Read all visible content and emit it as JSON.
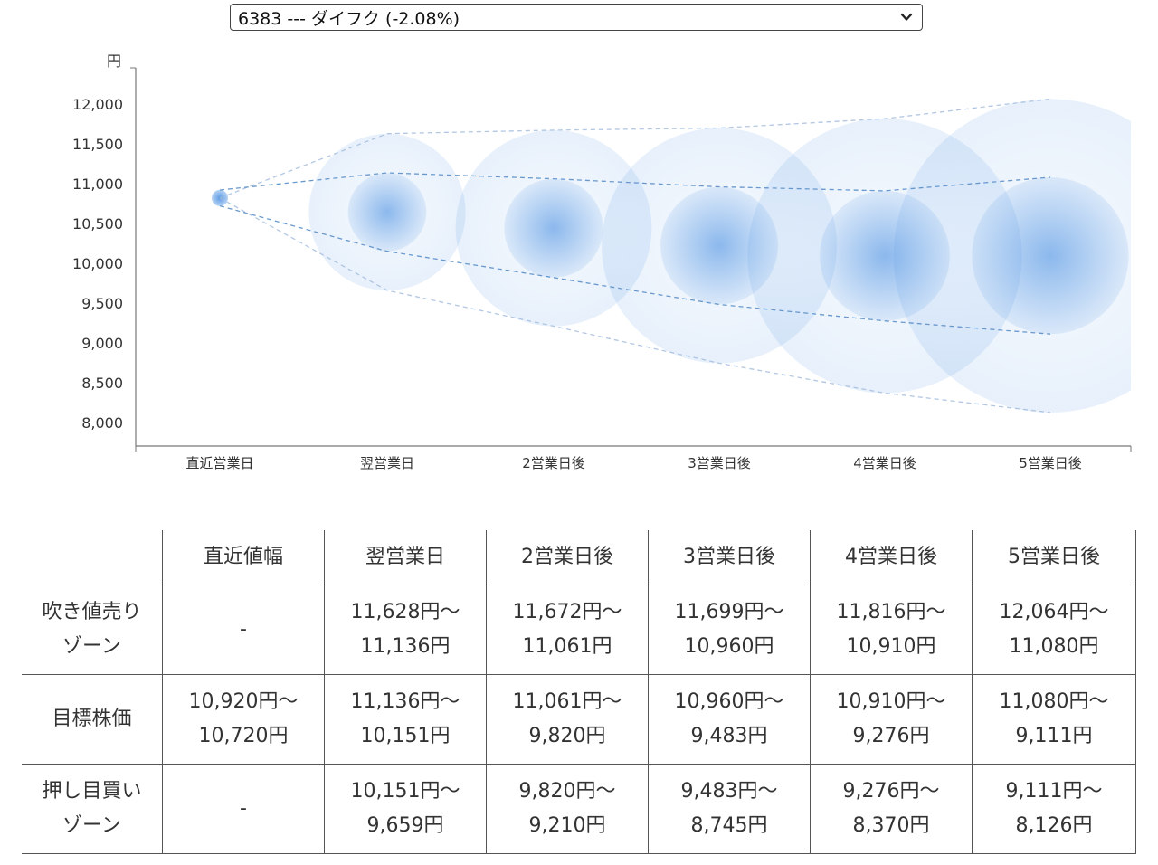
{
  "selector": {
    "value": "6383 --- ダイフク (-2.08%)"
  },
  "chart_data": {
    "type": "scatter",
    "y_unit": "円",
    "categories": [
      "直近営業日",
      "翌営業日",
      "2営業日後",
      "3営業日後",
      "4営業日後",
      "5営業日後"
    ],
    "y_ticks": [
      8000,
      8500,
      9000,
      9500,
      10000,
      10500,
      11000,
      11500,
      12000
    ],
    "y_tick_labels": [
      "8,000",
      "8,500",
      "9,000",
      "9,500",
      "10,000",
      "10,500",
      "11,000",
      "11,500",
      "12,000"
    ],
    "ylim": [
      7700,
      12500
    ],
    "points": [
      {
        "category": "直近営業日",
        "center": 10820,
        "inner_high": 10920,
        "inner_low": 10720,
        "outer_high": 10820,
        "outer_low": 10820
      },
      {
        "category": "翌営業日",
        "center": 10643,
        "inner_high": 11136,
        "inner_low": 10151,
        "outer_high": 11628,
        "outer_low": 9659
      },
      {
        "category": "2営業日後",
        "center": 10441,
        "inner_high": 11061,
        "inner_low": 9820,
        "outer_high": 11672,
        "outer_low": 9210
      },
      {
        "category": "3営業日後",
        "center": 10222,
        "inner_high": 10960,
        "inner_low": 9483,
        "outer_high": 11699,
        "outer_low": 8745
      },
      {
        "category": "4営業日後",
        "center": 10093,
        "inner_high": 10910,
        "inner_low": 9276,
        "outer_high": 11816,
        "outer_low": 8370
      },
      {
        "category": "5営業日後",
        "center": 10095,
        "inner_high": 11080,
        "inner_low": 9111,
        "outer_high": 12064,
        "outer_low": 8126
      }
    ],
    "colors": {
      "bubble": "#4a90e2",
      "guide": "#5a8fc8",
      "axis": "#666666"
    },
    "grid": false,
    "legend": "none"
  },
  "table": {
    "headers": [
      "",
      "直近値幅",
      "翌営業日",
      "2営業日後",
      "3営業日後",
      "4営業日後",
      "5営業日後"
    ],
    "rows": [
      {
        "label": [
          "吹き値売り",
          "ゾーン"
        ],
        "cells": [
          [
            "-"
          ],
          [
            "11,628円〜",
            "11,136円"
          ],
          [
            "11,672円〜",
            "11,061円"
          ],
          [
            "11,699円〜",
            "10,960円"
          ],
          [
            "11,816円〜",
            "10,910円"
          ],
          [
            "12,064円〜",
            "11,080円"
          ]
        ]
      },
      {
        "label": [
          "目標株価"
        ],
        "cells": [
          [
            "10,920円〜",
            "10,720円"
          ],
          [
            "11,136円〜",
            "10,151円"
          ],
          [
            "11,061円〜",
            "9,820円"
          ],
          [
            "10,960円〜",
            "9,483円"
          ],
          [
            "10,910円〜",
            "9,276円"
          ],
          [
            "11,080円〜",
            "9,111円"
          ]
        ]
      },
      {
        "label": [
          "押し目買い",
          "ゾーン"
        ],
        "cells": [
          [
            "-"
          ],
          [
            "10,151円〜",
            "9,659円"
          ],
          [
            "9,820円〜",
            "9,210円"
          ],
          [
            "9,483円〜",
            "8,745円"
          ],
          [
            "9,276円〜",
            "8,370円"
          ],
          [
            "9,111円〜",
            "8,126円"
          ]
        ]
      }
    ]
  }
}
